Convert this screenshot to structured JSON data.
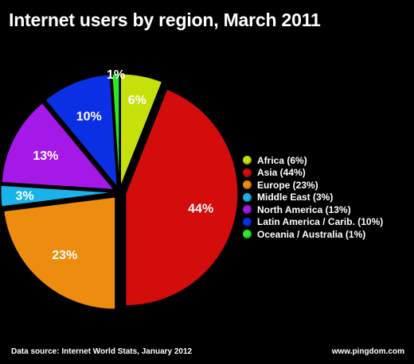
{
  "title": "Internet users by region, March 2011",
  "footer": {
    "source": "Data source: Internet World Stats, January 2012",
    "site": "www.pingdom.com"
  },
  "chart_data": {
    "type": "pie",
    "title": "Internet users by region, March 2011",
    "slices": [
      {
        "label": "Africa (6%)",
        "value": 6,
        "pct_label": "6%",
        "color": "#c6e00b"
      },
      {
        "label": "Asia (44%)",
        "value": 44,
        "pct_label": "44%",
        "color": "#d40c0c"
      },
      {
        "label": "Europe (23%)",
        "value": 23,
        "pct_label": "23%",
        "color": "#ee8c0f"
      },
      {
        "label": "Middle East (3%)",
        "value": 3,
        "pct_label": "3%",
        "color": "#1ab2ea"
      },
      {
        "label": "North America (13%)",
        "value": 13,
        "pct_label": "13%",
        "color": "#a418e8"
      },
      {
        "label": "Latin America / Carib. (10%)",
        "value": 10,
        "pct_label": "10%",
        "color": "#0b2fe4"
      },
      {
        "label": "Oceania / Australia (1%)",
        "value": 1,
        "pct_label": "1%",
        "color": "#2ee82a"
      }
    ],
    "start_angle": "12 o'clock",
    "direction": "clockwise",
    "exploded": true,
    "legend_position": "right"
  }
}
